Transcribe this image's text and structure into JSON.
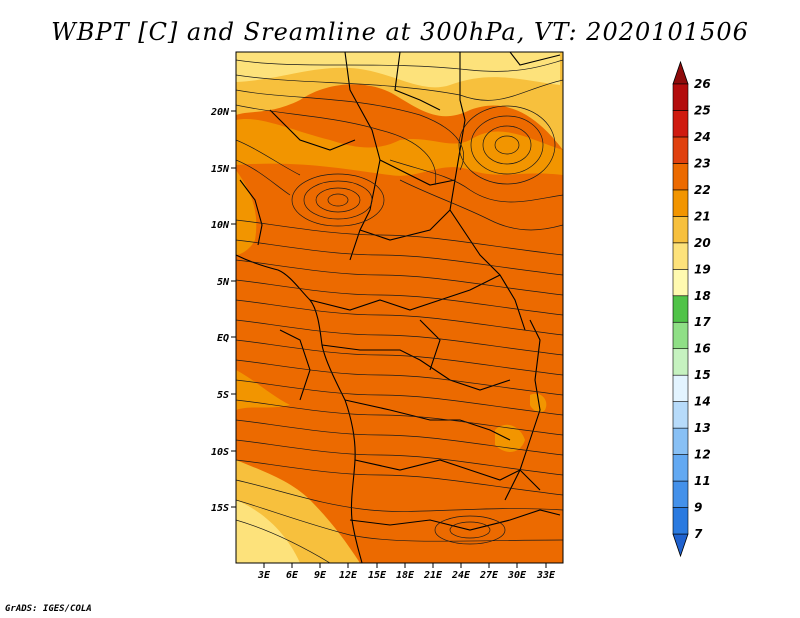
{
  "title": "WBPT [C] and Sreamline at 300hPa, VT: 2020101506",
  "credit": "GrADS: IGES/COLA",
  "map": {
    "lon_labels": [
      "3E",
      "6E",
      "9E",
      "12E",
      "15E",
      "18E",
      "21E",
      "24E",
      "27E",
      "30E",
      "33E"
    ],
    "lat_labels": [
      "20N",
      "15N",
      "10N",
      "5N",
      "EQ",
      "5S",
      "10S",
      "15S"
    ]
  },
  "colorbar": {
    "labels": [
      "7",
      "9",
      "11",
      "12",
      "13",
      "14",
      "15",
      "16",
      "17",
      "18",
      "19",
      "20",
      "21",
      "22",
      "23",
      "24",
      "25",
      "26"
    ],
    "colors": [
      "#1f62cf",
      "#2a7ae0",
      "#4491ea",
      "#63a9f2",
      "#88c0f5",
      "#b7dbfa",
      "#e3f4ff",
      "#c6f2c0",
      "#8fdf86",
      "#50c348",
      "#fffab0",
      "#fde27b",
      "#f7c03d",
      "#f29500",
      "#ec6a00",
      "#e0410f",
      "#cf1b10",
      "#b30c0c",
      "#8e0b0b"
    ]
  }
}
